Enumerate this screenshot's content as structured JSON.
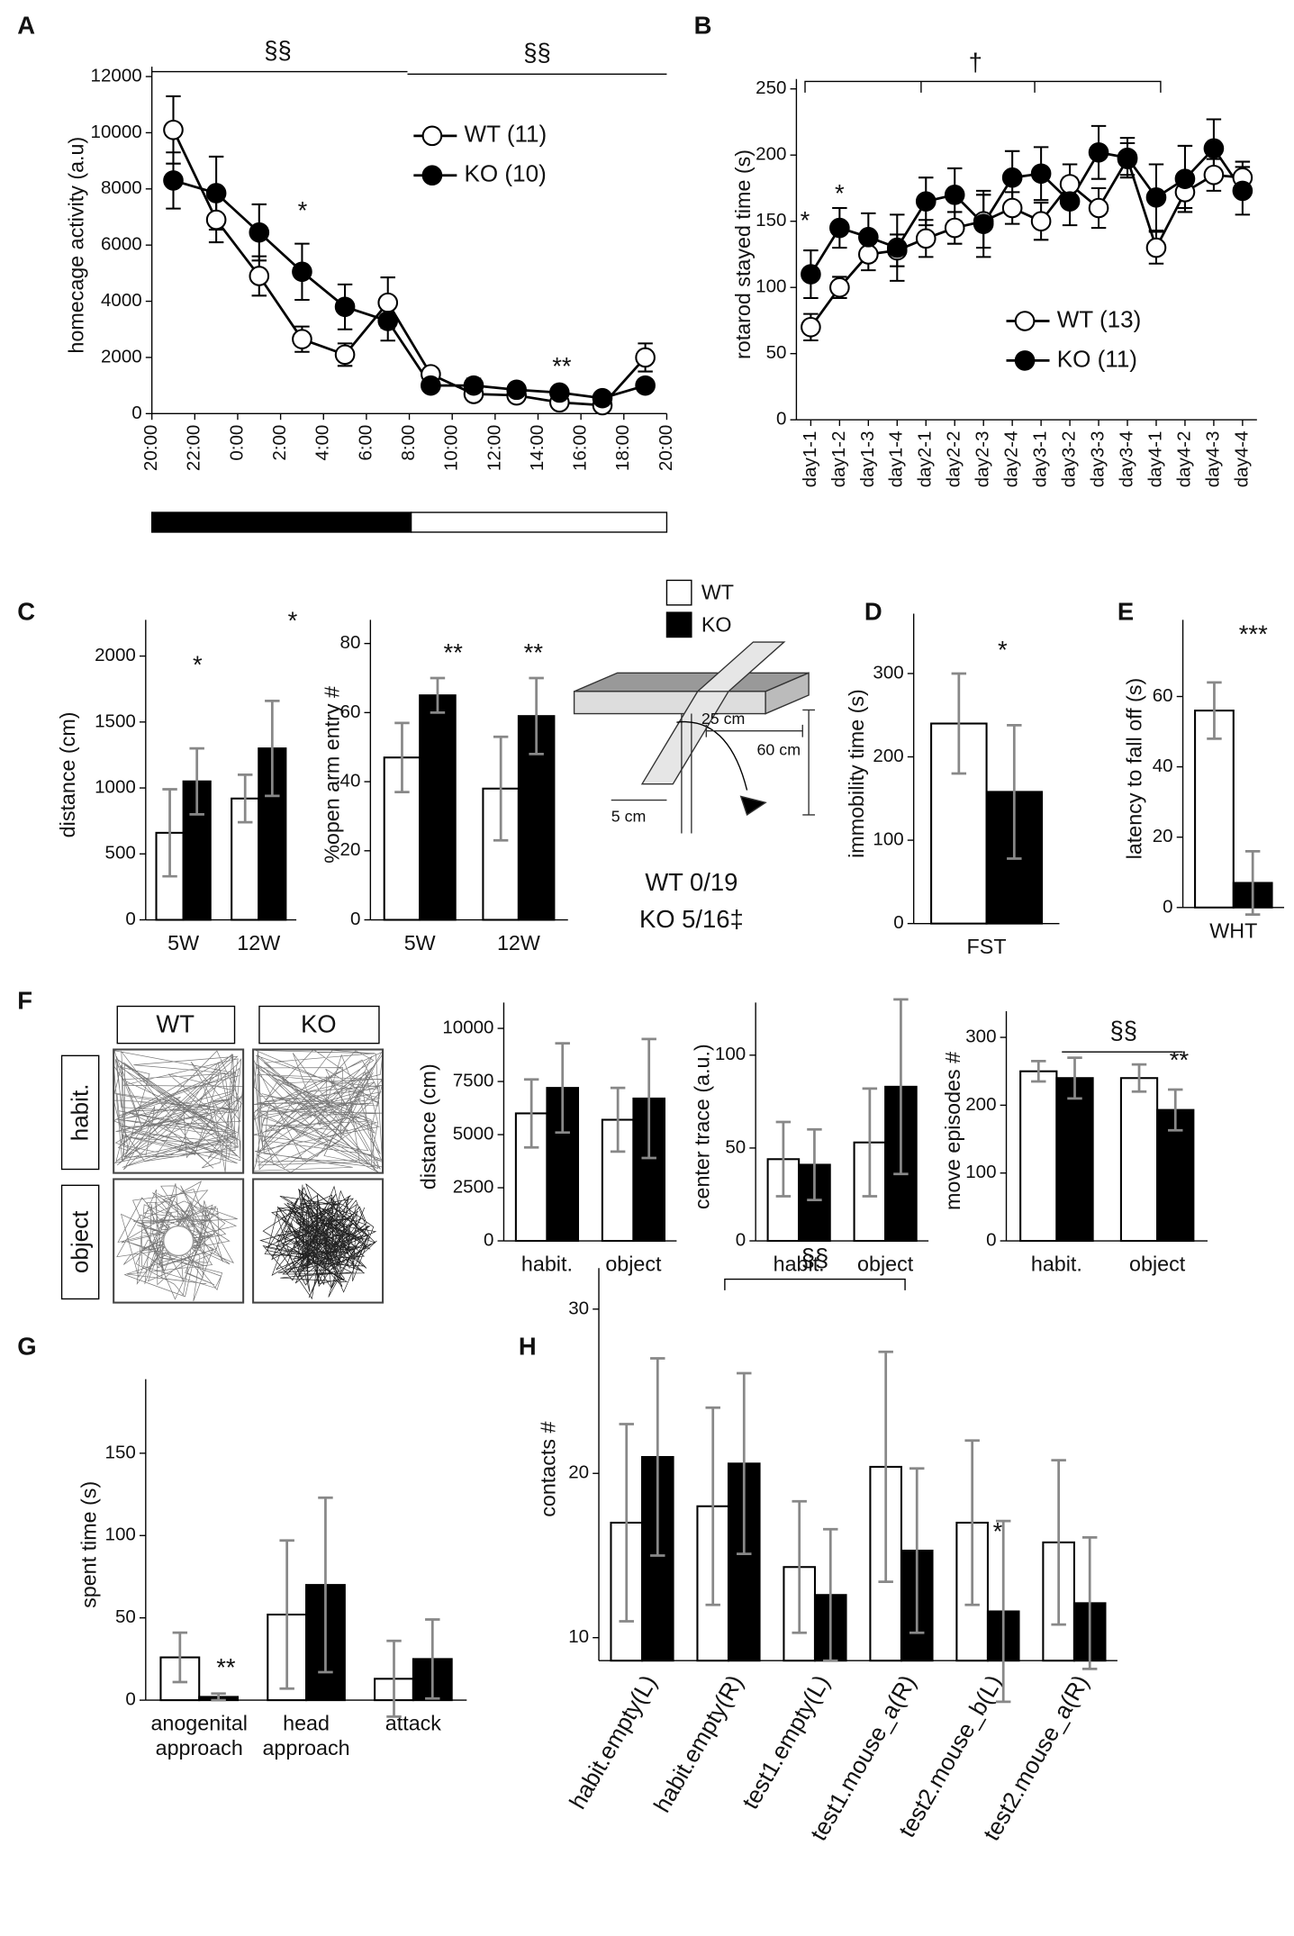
{
  "chart_data": [
    {
      "type": "line",
      "panel": "A",
      "y_label": "homecage activity (a.u)",
      "x": [
        1,
        3,
        5,
        7,
        9,
        11,
        13,
        15,
        17,
        19,
        21,
        23
      ],
      "xlim": [
        0,
        24
      ],
      "xticks": [
        {
          "value": 0,
          "label": "20:00"
        },
        {
          "value": 2,
          "label": "22:00"
        },
        {
          "value": 4,
          "label": "0:00"
        },
        {
          "value": 6,
          "label": "2:00"
        },
        {
          "value": 8,
          "label": "4:00"
        },
        {
          "value": 10,
          "label": "6:00"
        },
        {
          "value": 12,
          "label": "8:00"
        },
        {
          "value": 14,
          "label": "10:00"
        },
        {
          "value": 16,
          "label": "12:00"
        },
        {
          "value": 18,
          "label": "14:00"
        },
        {
          "value": 20,
          "label": "16:00"
        },
        {
          "value": 22,
          "label": "18:00"
        },
        {
          "value": 24,
          "label": "20:00"
        }
      ],
      "ylim": [
        0,
        12000
      ],
      "yticks": [
        0,
        2000,
        4000,
        6000,
        8000,
        10000,
        12000
      ],
      "legend": "upper right",
      "series": [
        {
          "name": "WT (11)",
          "color": "#ffffff",
          "values": [
            10100,
            6900,
            4900,
            2650,
            2100,
            3950,
            1400,
            700,
            650,
            400,
            300,
            2000
          ],
          "errors": [
            1200,
            800,
            700,
            450,
            400,
            900,
            200,
            200,
            200,
            150,
            100,
            500
          ]
        },
        {
          "name": "KO (10)",
          "color": "#000000",
          "values": [
            8300,
            7850,
            6450,
            5050,
            3800,
            3300,
            1000,
            1000,
            850,
            750,
            550,
            1000
          ],
          "errors": [
            1000,
            1300,
            1000,
            1000,
            800,
            700,
            150,
            250,
            150,
            150,
            100,
            150
          ]
        }
      ],
      "annotations": [
        "§§",
        "§§",
        "*",
        "**"
      ]
    },
    {
      "type": "line",
      "panel": "B",
      "y_label": "rotarod stayed time (s)",
      "categories": [
        "day1-1",
        "day1-2",
        "day1-3",
        "day1-4",
        "day2-1",
        "day2-2",
        "day2-3",
        "day2-4",
        "day3-1",
        "day3-2",
        "day3-3",
        "day3-4",
        "day4-1",
        "day4-2",
        "day4-3",
        "day4-4"
      ],
      "ylim": [
        0,
        250
      ],
      "yticks": [
        0,
        50,
        100,
        150,
        200,
        250
      ],
      "legend": "lower right",
      "series": [
        {
          "name": "WT (13)",
          "color": "#ffffff",
          "values": [
            70,
            100,
            125,
            128,
            137,
            145,
            150,
            160,
            150,
            178,
            160,
            197,
            130,
            172,
            185,
            183
          ],
          "errors": [
            10,
            8,
            12,
            12,
            14,
            12,
            20,
            12,
            14,
            15,
            15,
            12,
            12,
            12,
            12,
            12
          ]
        },
        {
          "name": "KO (11)",
          "color": "#000000",
          "values": [
            110,
            145,
            138,
            130,
            165,
            170,
            148,
            183,
            186,
            165,
            202,
            198,
            168,
            182,
            205,
            173
          ],
          "errors": [
            18,
            15,
            18,
            25,
            18,
            20,
            25,
            20,
            20,
            18,
            20,
            15,
            25,
            25,
            22,
            18
          ]
        }
      ],
      "annotations": [
        "†",
        "*",
        "*"
      ]
    },
    {
      "type": "bar",
      "panel": "C",
      "y_label": "distance (cm)",
      "categories": [
        "5W",
        "12W"
      ],
      "ylim": [
        0,
        2200
      ],
      "yticks": [
        0,
        500,
        1000,
        1500,
        2000
      ],
      "series": [
        {
          "name": "WT",
          "color": "#ffffff",
          "values": [
            660,
            920
          ],
          "errors": [
            330,
            180
          ]
        },
        {
          "name": "KO",
          "color": "#000000",
          "values": [
            1050,
            1300
          ],
          "errors": [
            250,
            360
          ]
        }
      ],
      "annotations": [
        "*",
        "*"
      ]
    },
    {
      "type": "bar",
      "y_label": "%open arm entry #",
      "categories": [
        "5W",
        "12W"
      ],
      "ylim": [
        0,
        84
      ],
      "yticks": [
        0,
        20,
        40,
        60,
        80
      ],
      "series": [
        {
          "name": "WT",
          "color": "#ffffff",
          "values": [
            47,
            38
          ],
          "errors": [
            10,
            15
          ]
        },
        {
          "name": "KO",
          "color": "#000000",
          "values": [
            65,
            59
          ],
          "errors": [
            5,
            11
          ]
        }
      ],
      "annotations": [
        "**",
        "**"
      ]
    },
    {
      "type": "bar",
      "panel": "D",
      "y_label": "immobility time (s)",
      "categories": [
        "FST"
      ],
      "ylim": [
        0,
        360
      ],
      "yticks": [
        0,
        100,
        200,
        300
      ],
      "series": [
        {
          "name": "WT",
          "color": "#ffffff",
          "values": [
            240
          ],
          "errors": [
            60
          ]
        },
        {
          "name": "KO",
          "color": "#000000",
          "values": [
            158
          ],
          "errors": [
            80
          ]
        }
      ],
      "annotations": [
        "*"
      ]
    },
    {
      "type": "bar",
      "panel": "E",
      "y_label": "latency to fall off (s)",
      "categories": [
        "WHT"
      ],
      "ylim": [
        0,
        79
      ],
      "yticks": [
        0,
        20,
        40,
        60
      ],
      "series": [
        {
          "name": "WT",
          "color": "#ffffff",
          "values": [
            56
          ],
          "errors": [
            8
          ]
        },
        {
          "name": "KO",
          "color": "#000000",
          "values": [
            7
          ],
          "errors": [
            9
          ]
        }
      ],
      "annotations": [
        "***"
      ]
    },
    {
      "type": "bar",
      "panel": "F",
      "y_label": "distance (cm)",
      "categories": [
        "habit.",
        "object"
      ],
      "ylim": [
        0,
        10750
      ],
      "yticks": [
        0,
        2500,
        5000,
        7500,
        10000
      ],
      "series": [
        {
          "name": "WT",
          "color": "#ffffff",
          "values": [
            6000,
            5700
          ],
          "errors": [
            1600,
            1500
          ]
        },
        {
          "name": "KO",
          "color": "#000000",
          "values": [
            7200,
            6700
          ],
          "errors": [
            2100,
            2800
          ]
        }
      ]
    },
    {
      "type": "bar",
      "y_label": "center trace (a.u.)",
      "categories": [
        "habit.",
        "object"
      ],
      "ylim": [
        0,
        123
      ],
      "yticks": [
        0,
        50,
        100
      ],
      "series": [
        {
          "name": "WT",
          "color": "#ffffff",
          "values": [
            44,
            53
          ],
          "errors": [
            20,
            29
          ]
        },
        {
          "name": "KO",
          "color": "#000000",
          "values": [
            41,
            83
          ],
          "errors": [
            19,
            47
          ]
        }
      ]
    },
    {
      "type": "bar",
      "y_label": "move episodes #",
      "categories": [
        "habit.",
        "object"
      ],
      "ylim": [
        0,
        324
      ],
      "yticks": [
        0,
        100,
        200,
        300
      ],
      "series": [
        {
          "name": "WT",
          "color": "#ffffff",
          "values": [
            250,
            240
          ],
          "errors": [
            15,
            20
          ]
        },
        {
          "name": "KO",
          "color": "#000000",
          "values": [
            240,
            193
          ],
          "errors": [
            30,
            30
          ]
        }
      ],
      "annotations": [
        "§§",
        "**"
      ]
    },
    {
      "type": "bar",
      "panel": "G",
      "y_label": "spent time (s)",
      "categories": [
        "anogenital approach",
        "head approach",
        "attack"
      ],
      "ylim": [
        0,
        189
      ],
      "yticks": [
        0,
        50,
        100,
        150
      ],
      "series": [
        {
          "name": "WT",
          "color": "#ffffff",
          "values": [
            26,
            52,
            13
          ],
          "errors": [
            15,
            45,
            23
          ]
        },
        {
          "name": "KO",
          "color": "#000000",
          "values": [
            2,
            70,
            25
          ],
          "errors": [
            2,
            53,
            24
          ]
        }
      ],
      "annotations": [
        "**"
      ]
    },
    {
      "type": "bar",
      "panel": "H",
      "y_label": "contacts #",
      "categories": [
        "habit.empty(L)",
        "habit.empty(R)",
        "test1.empty(L)",
        "test1.mouse_a(R)",
        "test2.mouse_b(L)",
        "test2.mouse_a(R)"
      ],
      "ylim": [
        8.6,
        31.9
      ],
      "yticks": [
        10,
        20,
        30
      ],
      "series": [
        {
          "name": "WT",
          "color": "#ffffff",
          "values": [
            17,
            18,
            14.3,
            20.4,
            17,
            15.8
          ],
          "errors": [
            6,
            6,
            4,
            7,
            5,
            5
          ]
        },
        {
          "name": "KO",
          "color": "#000000",
          "values": [
            21,
            20.6,
            12.6,
            15.3,
            11.6,
            12.1
          ],
          "errors": [
            6,
            5.5,
            4,
            5,
            5.5,
            4
          ]
        }
      ],
      "annotations": [
        "§§",
        "*"
      ]
    }
  ],
  "legend_c": [
    "WT",
    "KO"
  ],
  "maze": {
    "dimensions": [
      "25 cm",
      "60 cm",
      "5 cm"
    ],
    "results": [
      "WT 0/19",
      "KO 5/16‡"
    ]
  },
  "open_field": {
    "columns": [
      "WT",
      "KO"
    ],
    "rows": [
      "habit.",
      "object"
    ]
  }
}
